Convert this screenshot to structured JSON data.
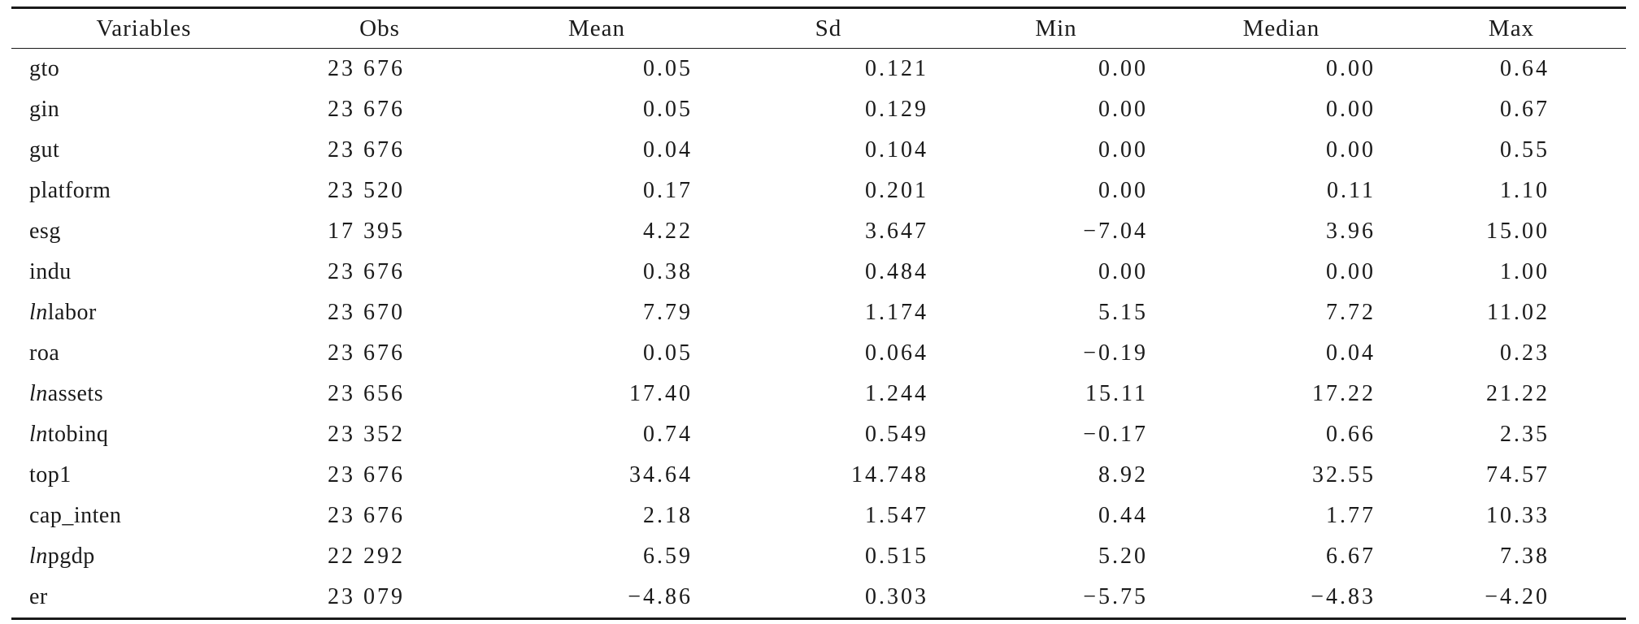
{
  "table": {
    "headers": [
      "Variables",
      "Obs",
      "Mean",
      "Sd",
      "Min",
      "Median",
      "Max"
    ],
    "rows": [
      {
        "var_prefix": "",
        "var": "gto",
        "obs": "23 676",
        "mean": "0.05",
        "sd": "0.121",
        "min": "0.00",
        "median": "0.00",
        "max": "0.64"
      },
      {
        "var_prefix": "",
        "var": "gin",
        "obs": "23 676",
        "mean": "0.05",
        "sd": "0.129",
        "min": "0.00",
        "median": "0.00",
        "max": "0.67"
      },
      {
        "var_prefix": "",
        "var": "gut",
        "obs": "23 676",
        "mean": "0.04",
        "sd": "0.104",
        "min": "0.00",
        "median": "0.00",
        "max": "0.55"
      },
      {
        "var_prefix": "",
        "var": "platform",
        "obs": "23 520",
        "mean": "0.17",
        "sd": "0.201",
        "min": "0.00",
        "median": "0.11",
        "max": "1.10"
      },
      {
        "var_prefix": "",
        "var": "esg",
        "obs": "17 395",
        "mean": "4.22",
        "sd": "3.647",
        "min": "−7.04",
        "median": "3.96",
        "max": "15.00"
      },
      {
        "var_prefix": "",
        "var": "indu",
        "obs": "23 676",
        "mean": "0.38",
        "sd": "0.484",
        "min": "0.00",
        "median": "0.00",
        "max": "1.00"
      },
      {
        "var_prefix": "ln",
        "var": "labor",
        "obs": "23 670",
        "mean": "7.79",
        "sd": "1.174",
        "min": "5.15",
        "median": "7.72",
        "max": "11.02"
      },
      {
        "var_prefix": "",
        "var": "roa",
        "obs": "23 676",
        "mean": "0.05",
        "sd": "0.064",
        "min": "−0.19",
        "median": "0.04",
        "max": "0.23"
      },
      {
        "var_prefix": "ln",
        "var": "assets",
        "obs": "23 656",
        "mean": "17.40",
        "sd": "1.244",
        "min": "15.11",
        "median": "17.22",
        "max": "21.22"
      },
      {
        "var_prefix": "ln",
        "var": "tobinq",
        "obs": "23 352",
        "mean": "0.74",
        "sd": "0.549",
        "min": "−0.17",
        "median": "0.66",
        "max": "2.35"
      },
      {
        "var_prefix": "",
        "var": "top1",
        "obs": "23 676",
        "mean": "34.64",
        "sd": "14.748",
        "min": "8.92",
        "median": "32.55",
        "max": "74.57"
      },
      {
        "var_prefix": "",
        "var": "cap_inten",
        "obs": "23 676",
        "mean": "2.18",
        "sd": "1.547",
        "min": "0.44",
        "median": "1.77",
        "max": "10.33"
      },
      {
        "var_prefix": "ln",
        "var": "pgdp",
        "obs": "22 292",
        "mean": "6.59",
        "sd": "0.515",
        "min": "5.20",
        "median": "6.67",
        "max": "7.38"
      },
      {
        "var_prefix": "",
        "var": "er",
        "obs": "23 079",
        "mean": "−4.86",
        "sd": "0.303",
        "min": "−5.75",
        "median": "−4.83",
        "max": "−4.20"
      }
    ]
  }
}
